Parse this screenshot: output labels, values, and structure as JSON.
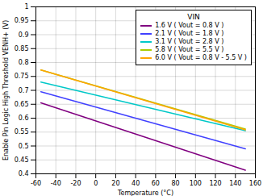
{
  "chart_data": {
    "type": "line",
    "xlabel": "Temperature (°C)",
    "ylabel": "Enable Pin Logic High Threshold VENH+ (V)",
    "legend_title": "VIN",
    "x": [
      -55,
      150
    ],
    "series": [
      {
        "name": "1.6 V ( Vout = 0.8 V )",
        "color": "#800080",
        "values": [
          0.655,
          0.413
        ]
      },
      {
        "name": "2.1 V ( Vout = 1.8 V )",
        "color": "#4040FF",
        "values": [
          0.695,
          0.49
        ]
      },
      {
        "name": "3.1 V ( Vout = 2.8 V )",
        "color": "#00C8C8",
        "values": [
          0.73,
          0.555
        ]
      },
      {
        "name": "5.8 V ( Vout = 5.5 V )",
        "color": "#AACC00",
        "values": [
          0.773,
          0.561
        ]
      },
      {
        "name": "6.0 V ( Vout = 0.8 V - 5.5 V )",
        "color": "#FFA500",
        "values": [
          0.773,
          0.558
        ]
      }
    ],
    "xlim": [
      -60,
      160
    ],
    "ylim": [
      0.4,
      1.0
    ],
    "xticks": [
      -60,
      -40,
      -20,
      0,
      20,
      40,
      60,
      80,
      100,
      120,
      140,
      160
    ],
    "yticks": [
      0.4,
      0.45,
      0.5,
      0.55,
      0.6,
      0.65,
      0.7,
      0.75,
      0.8,
      0.85,
      0.9,
      0.95,
      1
    ],
    "grid": true,
    "legend": "upper right"
  }
}
